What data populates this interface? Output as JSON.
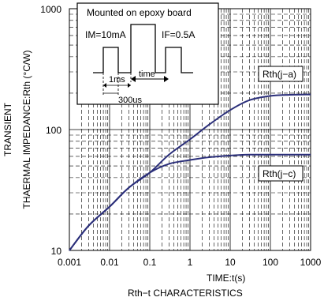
{
  "chart_data": {
    "type": "line",
    "title": "Rth−t CHARACTERISTICS",
    "xlabel": "TIME:t(s)",
    "ylabel_line1": "TRANSIENT",
    "ylabel_line2": "THAERMAL IMPEDANCE:Rth (°C/W)",
    "x_scale": "log",
    "y_scale": "log",
    "xlim": [
      0.001,
      1000
    ],
    "ylim": [
      10,
      1000
    ],
    "x_ticks": [
      "0.001",
      "0.01",
      "0.1",
      "1",
      "10",
      "100",
      "1000"
    ],
    "y_ticks": [
      "10",
      "100",
      "1000"
    ],
    "grid": true,
    "series": [
      {
        "name": "Rth(j−a)",
        "color": "#2b2f7a",
        "x": [
          0.001,
          0.003,
          0.01,
          0.03,
          0.1,
          0.3,
          1,
          3,
          10,
          30,
          100,
          300,
          1000
        ],
        "y": [
          10,
          16,
          23,
          33,
          44,
          62,
          83,
          110,
          145,
          175,
          190,
          194,
          195
        ]
      },
      {
        "name": "Rth(j−c)",
        "color": "#2b2f7a",
        "x": [
          0.001,
          0.003,
          0.01,
          0.03,
          0.1,
          0.3,
          1,
          3,
          10,
          30,
          100,
          300,
          1000
        ],
        "y": [
          10,
          16,
          23,
          33,
          44,
          52,
          56,
          59,
          61,
          62,
          62,
          62,
          62
        ]
      }
    ],
    "inset": {
      "title": "Mounted on epoxy board",
      "im_label": "IM=10mA",
      "if_label": "IF=0.5A",
      "ms_label": "1ms",
      "time_label": "time",
      "us_label": "300us"
    }
  }
}
